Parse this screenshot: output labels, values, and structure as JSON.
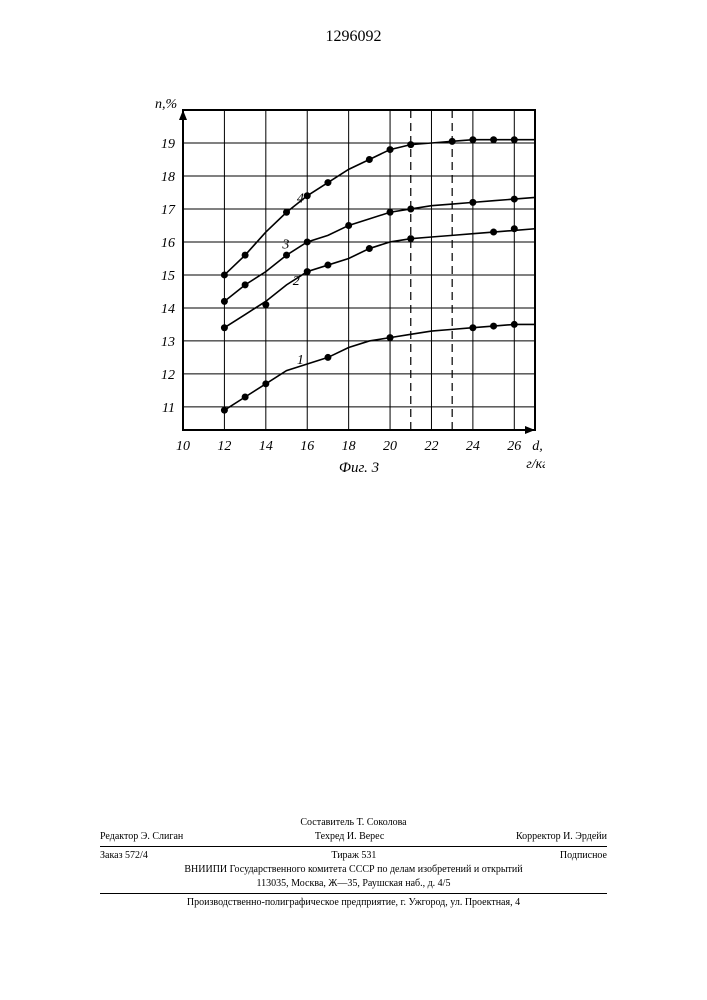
{
  "page_number": "1296092",
  "chart": {
    "type": "line",
    "caption": "Фиг. 3",
    "y_label": "n,%",
    "x_label_suffix": "d,",
    "x_unit": "г/кг",
    "x_ticks": [
      10,
      12,
      14,
      16,
      18,
      20,
      22,
      24,
      26
    ],
    "y_ticks": [
      11,
      12,
      13,
      14,
      15,
      16,
      17,
      18,
      19
    ],
    "xlim": [
      10,
      27
    ],
    "ylim": [
      10.3,
      20
    ],
    "plot_bg": "#ffffff",
    "grid_color": "#000000",
    "axis_width": 2,
    "grid_width": 1,
    "line_color": "#000000",
    "marker_color": "#000000",
    "marker_size": 3.5,
    "line_width": 1.6,
    "dash_lines_x": [
      21,
      23
    ],
    "font_size_axis": 14,
    "font_style": "italic",
    "series": [
      {
        "label": "1",
        "label_pos": [
          15.5,
          12.3
        ],
        "points": [
          [
            12,
            10.9
          ],
          [
            13,
            11.3
          ],
          [
            14,
            11.7
          ],
          [
            15,
            12.1
          ],
          [
            16,
            12.3
          ],
          [
            17,
            12.5
          ],
          [
            18,
            12.8
          ],
          [
            19,
            13.0
          ],
          [
            20,
            13.1
          ],
          [
            21,
            13.2
          ],
          [
            22,
            13.3
          ],
          [
            23,
            13.35
          ],
          [
            24,
            13.4
          ],
          [
            25,
            13.45
          ],
          [
            26,
            13.5
          ],
          [
            27,
            13.5
          ]
        ],
        "markers": [
          [
            12,
            10.9
          ],
          [
            13,
            11.3
          ],
          [
            14,
            11.7
          ],
          [
            17,
            12.5
          ],
          [
            20,
            13.1
          ],
          [
            24,
            13.4
          ],
          [
            25,
            13.45
          ],
          [
            26,
            13.5
          ]
        ]
      },
      {
        "label": "2",
        "label_pos": [
          15.3,
          14.7
        ],
        "points": [
          [
            12,
            13.4
          ],
          [
            13,
            13.8
          ],
          [
            14,
            14.2
          ],
          [
            15,
            14.7
          ],
          [
            16,
            15.1
          ],
          [
            17,
            15.3
          ],
          [
            18,
            15.5
          ],
          [
            19,
            15.8
          ],
          [
            20,
            16.0
          ],
          [
            21,
            16.1
          ],
          [
            22,
            16.15
          ],
          [
            23,
            16.2
          ],
          [
            24,
            16.25
          ],
          [
            25,
            16.3
          ],
          [
            26,
            16.35
          ],
          [
            27,
            16.4
          ]
        ],
        "markers": [
          [
            12,
            13.4
          ],
          [
            14,
            14.1
          ],
          [
            16,
            15.1
          ],
          [
            17,
            15.3
          ],
          [
            19,
            15.8
          ],
          [
            21,
            16.1
          ],
          [
            25,
            16.3
          ],
          [
            26,
            16.4
          ]
        ]
      },
      {
        "label": "3",
        "label_pos": [
          14.8,
          15.8
        ],
        "points": [
          [
            12,
            14.2
          ],
          [
            13,
            14.7
          ],
          [
            14,
            15.1
          ],
          [
            15,
            15.6
          ],
          [
            16,
            16.0
          ],
          [
            17,
            16.2
          ],
          [
            18,
            16.5
          ],
          [
            19,
            16.7
          ],
          [
            20,
            16.9
          ],
          [
            21,
            17.0
          ],
          [
            22,
            17.1
          ],
          [
            23,
            17.15
          ],
          [
            24,
            17.2
          ],
          [
            25,
            17.25
          ],
          [
            26,
            17.3
          ],
          [
            27,
            17.35
          ]
        ],
        "markers": [
          [
            12,
            14.2
          ],
          [
            13,
            14.7
          ],
          [
            15,
            15.6
          ],
          [
            16,
            16.0
          ],
          [
            18,
            16.5
          ],
          [
            20,
            16.9
          ],
          [
            21,
            17.0
          ],
          [
            24,
            17.2
          ],
          [
            26,
            17.3
          ]
        ]
      },
      {
        "label": "4",
        "label_pos": [
          15.5,
          17.2
        ],
        "points": [
          [
            12,
            15.0
          ],
          [
            13,
            15.6
          ],
          [
            14,
            16.3
          ],
          [
            15,
            16.9
          ],
          [
            16,
            17.4
          ],
          [
            17,
            17.8
          ],
          [
            18,
            18.2
          ],
          [
            19,
            18.5
          ],
          [
            20,
            18.8
          ],
          [
            21,
            18.95
          ],
          [
            22,
            19.0
          ],
          [
            23,
            19.05
          ],
          [
            24,
            19.1
          ],
          [
            25,
            19.1
          ],
          [
            26,
            19.1
          ],
          [
            27,
            19.1
          ]
        ],
        "markers": [
          [
            12,
            15.0
          ],
          [
            13,
            15.6
          ],
          [
            15,
            16.9
          ],
          [
            16,
            17.4
          ],
          [
            17,
            17.8
          ],
          [
            19,
            18.5
          ],
          [
            20,
            18.8
          ],
          [
            21,
            18.95
          ],
          [
            23,
            19.05
          ],
          [
            24,
            19.1
          ],
          [
            25,
            19.1
          ],
          [
            26,
            19.1
          ]
        ]
      }
    ]
  },
  "footer": {
    "compiler": "Составитель Т. Соколова",
    "editor": "Редактор Э. Слиган",
    "techred": "Техред И. Верес",
    "corrector": "Корректор И. Эрдейи",
    "order": "Заказ 572/4",
    "tirage": "Тираж 531",
    "subscription": "Подписное",
    "org_line1": "ВНИИПИ Государственного комитета СССР по делам изобретений и открытий",
    "org_line2": "113035, Москва, Ж—35, Раушская наб., д. 4/5",
    "prod": "Производственно-полиграфическое предприятие, г. Ужгород, ул. Проектная, 4"
  }
}
